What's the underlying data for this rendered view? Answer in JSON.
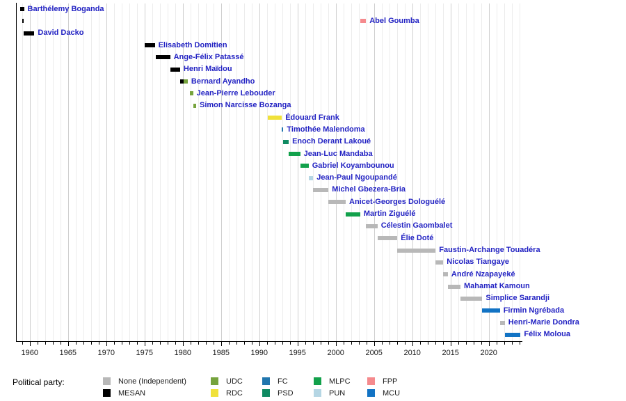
{
  "legend": {
    "label": "Political party:",
    "entries": [
      {
        "party": "None",
        "label": "None (Independent)"
      },
      {
        "party": "MESAN",
        "label": "MESAN"
      },
      {
        "party": "UDC",
        "label": "UDC"
      },
      {
        "party": "RDC",
        "label": "RDC"
      },
      {
        "party": "FC",
        "label": "FC"
      },
      {
        "party": "PSD",
        "label": "PSD"
      },
      {
        "party": "MLPC",
        "label": "MLPC"
      },
      {
        "party": "PUN",
        "label": "PUN"
      },
      {
        "party": "FPP",
        "label": "FPP"
      },
      {
        "party": "MCU",
        "label": "MCU"
      }
    ]
  },
  "chart_data": {
    "type": "bar",
    "subtype": "timeline-gantt",
    "title": "",
    "xlabel": "",
    "ylabel": "",
    "grid": true,
    "legend_position": "bottom",
    "x_axis": {
      "min": 1958.2,
      "max": 2024.3,
      "minor_tick_interval": 1,
      "major_tick_start": 1960,
      "major_tick_interval": 5,
      "tick_labels": [
        "1960",
        "1965",
        "1970",
        "1975",
        "1980",
        "1985",
        "1990",
        "1995",
        "2000",
        "2005",
        "2010",
        "2015",
        "2020"
      ]
    },
    "party_colors": {
      "None": "#b8b8b8",
      "MESAN": "#000000",
      "UDC": "#76a33d",
      "RDC": "#f0e13a",
      "FC": "#2176ae",
      "PSD": "#0f8a62",
      "MLPC": "#12a14b",
      "PUN": "#b5d6e4",
      "FPP": "#f58a8d",
      "MCU": "#1273c4"
    },
    "people": [
      {
        "name": "Barthélemy Boganda",
        "periods": [
          {
            "party": "MESAN",
            "start": 1958.7,
            "end": 1959.25
          }
        ]
      },
      {
        "name": "Abel Goumba",
        "periods": [
          {
            "party": "MESAN",
            "start": 1959.0,
            "end": 1959.2
          },
          {
            "party": "FPP",
            "start": 2003.2,
            "end": 2003.95
          }
        ]
      },
      {
        "name": "David Dacko",
        "periods": [
          {
            "party": "MESAN",
            "start": 1959.2,
            "end": 1960.6
          }
        ]
      },
      {
        "name": "Elisabeth Domitien",
        "periods": [
          {
            "party": "MESAN",
            "start": 1975.0,
            "end": 1976.35
          }
        ]
      },
      {
        "name": "Ange-Félix Patassé",
        "periods": [
          {
            "party": "MESAN",
            "start": 1976.45,
            "end": 1978.35
          }
        ]
      },
      {
        "name": "Henri Maïdou",
        "periods": [
          {
            "party": "MESAN",
            "start": 1978.35,
            "end": 1979.65
          }
        ]
      },
      {
        "name": "Bernard Ayandho",
        "periods": [
          {
            "party": "MESAN",
            "start": 1979.65,
            "end": 1980.1
          },
          {
            "party": "UDC",
            "start": 1980.1,
            "end": 1980.65
          }
        ]
      },
      {
        "name": "Jean-Pierre Lebouder",
        "periods": [
          {
            "party": "UDC",
            "start": 1980.9,
            "end": 1981.35
          }
        ]
      },
      {
        "name": "Simon Narcisse Bozanga",
        "periods": [
          {
            "party": "UDC",
            "start": 1981.35,
            "end": 1981.75
          }
        ]
      },
      {
        "name": "Édouard Frank",
        "periods": [
          {
            "party": "RDC",
            "start": 1991.15,
            "end": 1992.95
          }
        ]
      },
      {
        "name": "Timothée Malendoma",
        "periods": [
          {
            "party": "FC",
            "start": 1992.95,
            "end": 1993.15
          }
        ]
      },
      {
        "name": "Enoch Derant Lakoué",
        "periods": [
          {
            "party": "PSD",
            "start": 1993.15,
            "end": 1993.85
          }
        ]
      },
      {
        "name": "Jean-Luc Mandaba",
        "periods": [
          {
            "party": "MLPC",
            "start": 1993.85,
            "end": 1995.35
          }
        ]
      },
      {
        "name": "Gabriel Koyambounou",
        "periods": [
          {
            "party": "MLPC",
            "start": 1995.35,
            "end": 1996.45
          }
        ]
      },
      {
        "name": "Jean-Paul Ngoupandé",
        "periods": [
          {
            "party": "PUN",
            "start": 1996.45,
            "end": 1997.05
          }
        ]
      },
      {
        "name": "Michel Gbezera-Bria",
        "periods": [
          {
            "party": "None",
            "start": 1997.05,
            "end": 1999.05
          }
        ]
      },
      {
        "name": "Anicet-Georges Dologuélé",
        "periods": [
          {
            "party": "None",
            "start": 1999.05,
            "end": 2001.3
          }
        ]
      },
      {
        "name": "Martin Ziguélé",
        "periods": [
          {
            "party": "MLPC",
            "start": 2001.3,
            "end": 2003.2
          }
        ]
      },
      {
        "name": "Célestin Gaombalet",
        "periods": [
          {
            "party": "None",
            "start": 2003.95,
            "end": 2005.45
          }
        ]
      },
      {
        "name": "Élie Doté",
        "periods": [
          {
            "party": "None",
            "start": 2005.45,
            "end": 2008.05
          }
        ]
      },
      {
        "name": "Faustin-Archange Touadéra",
        "periods": [
          {
            "party": "None",
            "start": 2008.05,
            "end": 2013.05
          }
        ]
      },
      {
        "name": "Nicolas Tiangaye",
        "periods": [
          {
            "party": "None",
            "start": 2013.05,
            "end": 2014.05
          }
        ]
      },
      {
        "name": "André Nzapayeké",
        "periods": [
          {
            "party": "None",
            "start": 2014.05,
            "end": 2014.65
          }
        ]
      },
      {
        "name": "Mahamat Kamoun",
        "periods": [
          {
            "party": "None",
            "start": 2014.65,
            "end": 2016.3
          }
        ]
      },
      {
        "name": "Simplice Sarandji",
        "periods": [
          {
            "party": "None",
            "start": 2016.3,
            "end": 2019.15
          }
        ]
      },
      {
        "name": "Firmin Ngrébada",
        "periods": [
          {
            "party": "MCU",
            "start": 2019.15,
            "end": 2021.45
          }
        ]
      },
      {
        "name": "Henri-Marie Dondra",
        "periods": [
          {
            "party": "None",
            "start": 2021.45,
            "end": 2022.1
          }
        ]
      },
      {
        "name": "Félix Moloua",
        "periods": [
          {
            "party": "MCU",
            "start": 2022.1,
            "end": 2024.15
          }
        ]
      }
    ]
  }
}
